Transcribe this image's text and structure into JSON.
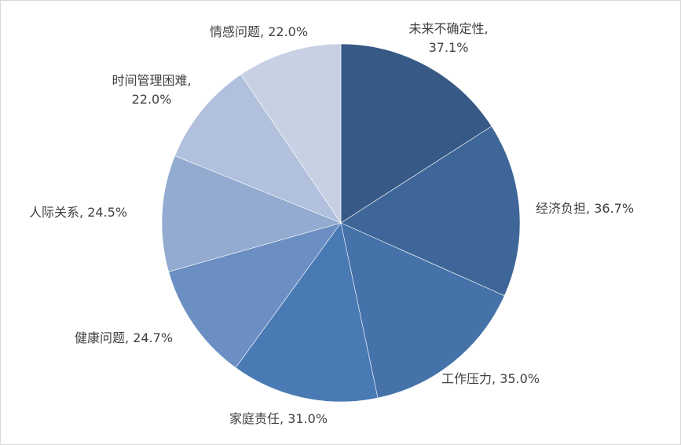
{
  "chart_data": {
    "type": "pie",
    "categories": [
      "未来不确定性",
      "经济负担",
      "工作压力",
      "家庭责任",
      "健康问题",
      "人际关系",
      "时间管理困难",
      "情感问题"
    ],
    "values": [
      37.1,
      36.7,
      35.0,
      31.0,
      24.7,
      24.5,
      22.0,
      22.0
    ],
    "data_labels": [
      "37.1%",
      "36.7%",
      "35.0%",
      "31.0%",
      "24.7%",
      "24.5%",
      "22.0%",
      "22.0%"
    ],
    "colors": [
      "#375985",
      "#3e6698",
      "#4572a9",
      "#4a7ab4",
      "#6b8fc3",
      "#93abd0",
      "#b1c0dc",
      "#c8d1e4"
    ],
    "start_angle": "12 o'clock",
    "direction": "clockwise",
    "legend": "none"
  }
}
